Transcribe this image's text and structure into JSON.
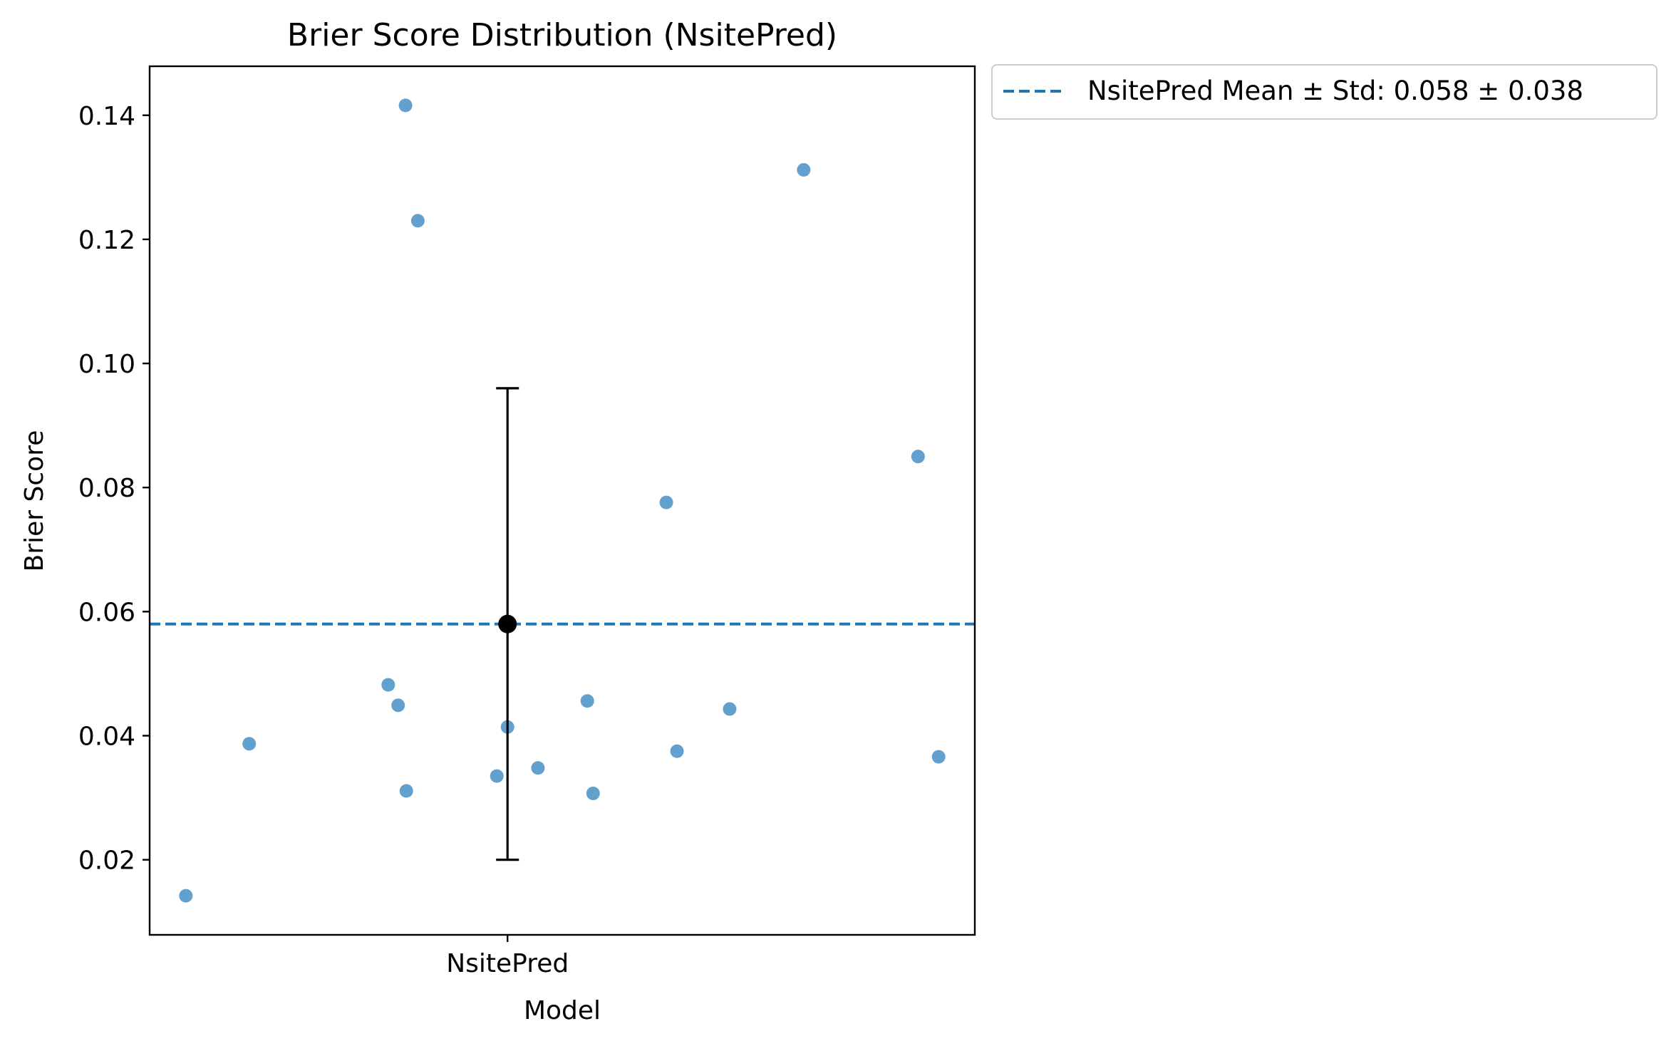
{
  "chart_data": {
    "type": "scatter",
    "title": "Brier Score Distribution (NsitePred)",
    "xlabel": "Model",
    "ylabel": "Brier Score",
    "categories": [
      "NsitePred"
    ],
    "ylim": [
      0.0079,
      0.1479
    ],
    "y_ticks": [
      0.02,
      0.04,
      0.06,
      0.08,
      0.1,
      0.12,
      0.14
    ],
    "y_tick_labels": [
      "0.02",
      "0.04",
      "0.06",
      "0.08",
      "0.10",
      "0.12",
      "0.14"
    ],
    "grid": false,
    "legend_position": "outside-top-right",
    "series": [
      {
        "type": "strip",
        "category": "NsitePred",
        "color": "#5b9bcb",
        "points": [
          {
            "jitter": -0.391,
            "y": 0.0142
          },
          {
            "jitter": -0.314,
            "y": 0.0387
          },
          {
            "jitter": -0.145,
            "y": 0.0482
          },
          {
            "jitter": -0.133,
            "y": 0.0449
          },
          {
            "jitter": -0.124,
            "y": 0.1416
          },
          {
            "jitter": -0.123,
            "y": 0.0311
          },
          {
            "jitter": -0.109,
            "y": 0.123
          },
          {
            "jitter": -0.013,
            "y": 0.0335
          },
          {
            "jitter": 0.0,
            "y": 0.0414
          },
          {
            "jitter": 0.037,
            "y": 0.0348
          },
          {
            "jitter": 0.097,
            "y": 0.0456
          },
          {
            "jitter": 0.104,
            "y": 0.0307
          },
          {
            "jitter": 0.193,
            "y": 0.0776
          },
          {
            "jitter": 0.206,
            "y": 0.0375
          },
          {
            "jitter": 0.27,
            "y": 0.0443
          },
          {
            "jitter": 0.36,
            "y": 0.1312
          },
          {
            "jitter": 0.499,
            "y": 0.085
          },
          {
            "jitter": 0.524,
            "y": 0.0366
          }
        ]
      }
    ],
    "mean_marker": {
      "category": "NsitePred",
      "mean": 0.058,
      "std": 0.038,
      "color": "#000000"
    },
    "mean_line": {
      "y": 0.058,
      "color": "#1f77b4",
      "style": "dashed",
      "legend": "NsitePred Mean ± Std: 0.058 ± 0.038"
    },
    "x_range": [
      -0.435,
      0.568
    ]
  }
}
